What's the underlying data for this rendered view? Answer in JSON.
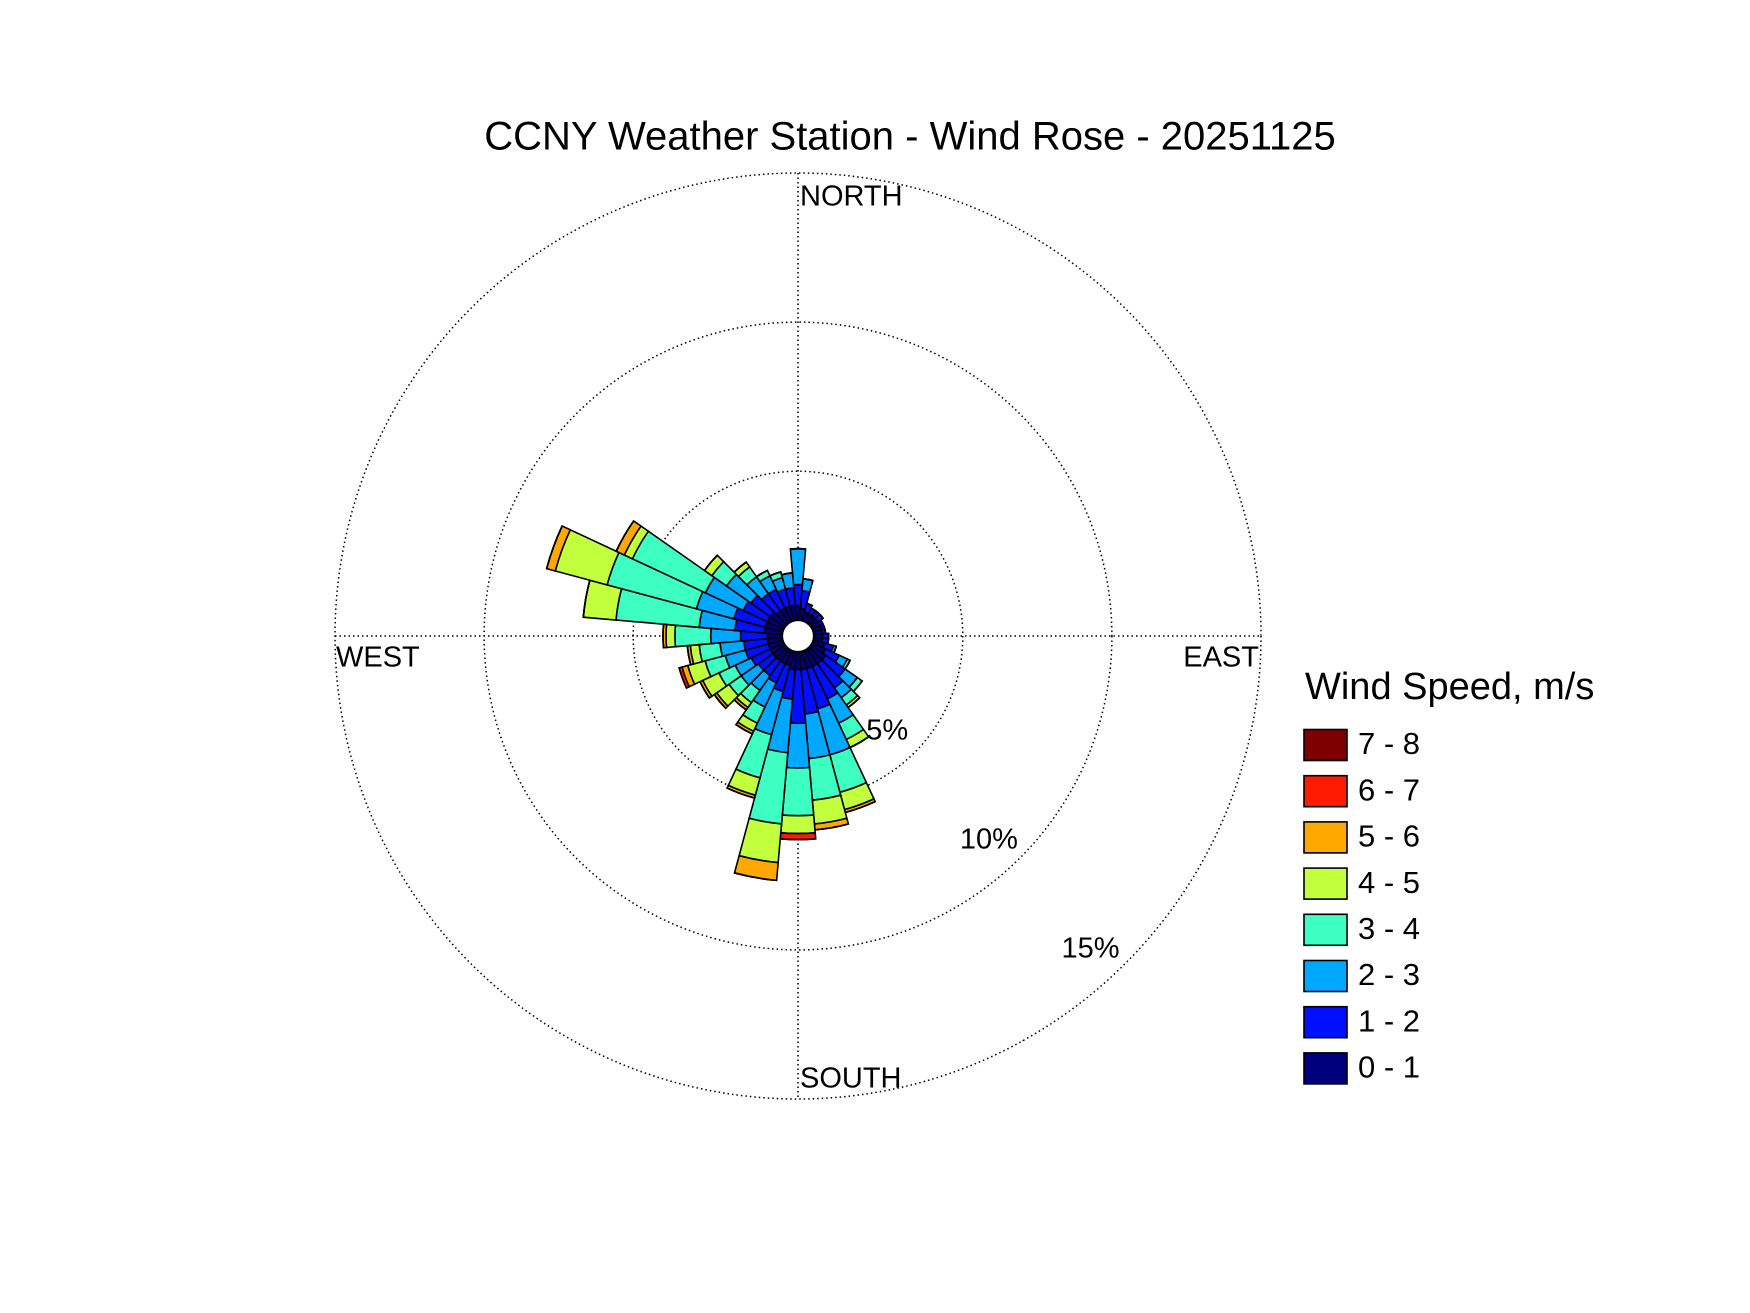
{
  "chart_data": {
    "type": "windrose",
    "title": "CCNY Weather Station - Wind Rose - 20251125",
    "legend_title": "Wind Speed, m/s",
    "compass": {
      "north": "NORTH",
      "east": "EAST",
      "south": "SOUTH",
      "west": "WEST"
    },
    "directions": [
      0,
      10,
      20,
      30,
      40,
      50,
      60,
      70,
      80,
      90,
      100,
      110,
      120,
      130,
      140,
      150,
      160,
      170,
      180,
      190,
      200,
      210,
      220,
      230,
      240,
      250,
      260,
      270,
      280,
      290,
      300,
      310,
      320,
      330,
      340,
      350
    ],
    "rlim": [
      0,
      15
    ],
    "rticks": [
      {
        "value": 5,
        "label": "5%"
      },
      {
        "value": 10,
        "label": "10%"
      },
      {
        "value": 15,
        "label": "15%"
      }
    ],
    "grid": true,
    "series": [
      {
        "name": "0 - 1",
        "color": "#00007f",
        "values": [
          0.5,
          0.4,
          0.3,
          0.3,
          0.3,
          0.3,
          0.3,
          0.3,
          0.3,
          0.3,
          0.3,
          0.4,
          0.5,
          0.6,
          0.6,
          0.6,
          0.6,
          0.6,
          0.6,
          0.6,
          0.5,
          0.5,
          0.5,
          0.5,
          0.5,
          0.5,
          0.5,
          0.5,
          0.6,
          0.6,
          0.6,
          0.6,
          0.5,
          0.5,
          0.5,
          0.5
        ]
      },
      {
        "name": "1 - 2",
        "color": "#0010ff",
        "values": [
          0.7,
          0.6,
          0.3,
          0.2,
          0.2,
          0.2,
          0.1,
          0.1,
          0.1,
          0.2,
          0.2,
          0.3,
          0.5,
          0.8,
          1.0,
          1.2,
          1.4,
          1.5,
          1.8,
          1.0,
          0.9,
          0.7,
          0.6,
          0.6,
          0.7,
          0.8,
          0.8,
          0.9,
          1.0,
          1.1,
          0.9,
          0.8,
          0.7,
          0.7,
          0.6,
          0.6
        ]
      },
      {
        "name": "2 - 3",
        "color": "#00a8ff",
        "values": [
          1.2,
          0.4,
          0,
          0,
          0,
          0,
          0,
          0,
          0,
          0,
          0,
          0.1,
          0.3,
          0.5,
          0.4,
          0.9,
          1.6,
          1.5,
          1.5,
          1.8,
          1.5,
          0.9,
          0.6,
          0.7,
          0.6,
          0.7,
          0.8,
          1.0,
          1.2,
          1.3,
          1.4,
          1.0,
          0.7,
          0.5,
          0.4,
          0.5
        ]
      },
      {
        "name": "3 - 4",
        "color": "#3dffc2",
        "values": [
          0,
          0,
          0,
          0,
          0,
          0,
          0,
          0,
          0,
          0,
          0,
          0,
          0.1,
          0.2,
          0.3,
          0.6,
          1.3,
          1.4,
          1.6,
          2.4,
          1.5,
          0.6,
          0.5,
          0.5,
          0.6,
          0.7,
          0.7,
          1.2,
          2.8,
          3.1,
          2.7,
          0.6,
          0.4,
          0.2,
          0.2,
          0
        ]
      },
      {
        "name": "4 - 5",
        "color": "#c2ff3d",
        "values": [
          0,
          0,
          0,
          0,
          0,
          0,
          0,
          0,
          0,
          0,
          0,
          0,
          0,
          0,
          0.1,
          0.3,
          0.6,
          0.8,
          0.6,
          1.3,
          0.6,
          0.3,
          0.2,
          0.5,
          0.6,
          0.6,
          0.3,
          0.3,
          1.1,
          1.8,
          0.3,
          0.3,
          0.2,
          0,
          0,
          0
        ]
      },
      {
        "name": "5 - 6",
        "color": "#ffa800",
        "values": [
          0,
          0,
          0,
          0,
          0,
          0,
          0,
          0,
          0,
          0,
          0,
          0,
          0,
          0,
          0,
          0,
          0.1,
          0.2,
          0,
          0.6,
          0.1,
          0.1,
          0.1,
          0.1,
          0.1,
          0.2,
          0.1,
          0.1,
          0,
          0.3,
          0.3,
          0,
          0,
          0,
          0,
          0
        ]
      },
      {
        "name": "6 - 7",
        "color": "#ff1a00",
        "values": [
          0,
          0,
          0,
          0,
          0,
          0,
          0,
          0,
          0,
          0,
          0,
          0,
          0,
          0,
          0,
          0,
          0,
          0,
          0.2,
          0,
          0,
          0,
          0,
          0,
          0,
          0.1,
          0,
          0,
          0,
          0,
          0,
          0,
          0,
          0,
          0,
          0
        ]
      },
      {
        "name": "7 - 8",
        "color": "#7f0000",
        "values": [
          0,
          0,
          0,
          0,
          0,
          0,
          0,
          0,
          0,
          0,
          0,
          0,
          0,
          0,
          0,
          0,
          0,
          0,
          0,
          0,
          0,
          0,
          0,
          0,
          0,
          0,
          0,
          0,
          0,
          0,
          0,
          0,
          0,
          0,
          0,
          0
        ]
      }
    ]
  }
}
